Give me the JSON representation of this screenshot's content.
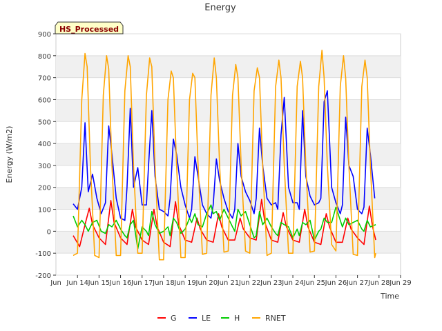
{
  "chart_data": {
    "type": "line",
    "title": "Energy",
    "xlabel": "Time",
    "ylabel": "Energy (W/m2)",
    "ylim": [
      -200,
      900
    ],
    "xlim": [
      13,
      29
    ],
    "y_ticks": [
      "-200",
      "-100",
      "0",
      "100",
      "200",
      "300",
      "400",
      "500",
      "600",
      "700",
      "800",
      "900"
    ],
    "x_ticks": [
      "Jun 14",
      "Jun 15",
      "Jun 16",
      "Jun 17",
      "Jun 18",
      "Jun 19",
      "Jun 20",
      "Jun 21",
      "Jun 22",
      "Jun 23",
      "Jun 24",
      "Jun 25",
      "Jun 26",
      "Jun 27",
      "Jun 28",
      "Jun 29"
    ],
    "x_tick_positions": [
      14,
      15,
      16,
      17,
      18,
      19,
      20,
      21,
      22,
      23,
      24,
      25,
      26,
      27,
      28,
      29
    ],
    "x_first_label": "Jun",
    "annotation": "HS_Processed",
    "legend_position": "bottom-center",
    "grid": "horizontal bands",
    "series": [
      {
        "name": "G",
        "color": "#ff0000",
        "x": [
          13.8,
          14.1,
          14.4,
          14.55,
          14.7,
          15.0,
          15.3,
          15.55,
          15.7,
          16.0,
          16.3,
          16.55,
          16.7,
          17.0,
          17.3,
          17.55,
          17.7,
          18.0,
          18.3,
          18.55,
          18.7,
          19.0,
          19.3,
          19.55,
          19.7,
          20.0,
          20.3,
          20.55,
          20.7,
          21.0,
          21.3,
          21.55,
          21.7,
          22.0,
          22.3,
          22.55,
          22.7,
          23.0,
          23.3,
          23.55,
          23.7,
          24.0,
          24.3,
          24.55,
          24.7,
          25.0,
          25.3,
          25.55,
          25.7,
          26.0,
          26.3,
          26.55,
          26.7,
          27.0,
          27.3,
          27.55,
          27.7,
          27.85
        ],
        "values": [
          -20,
          -70,
          50,
          105,
          30,
          -30,
          -60,
          140,
          40,
          -30,
          -60,
          100,
          20,
          -40,
          -60,
          100,
          20,
          -50,
          -70,
          135,
          30,
          -40,
          -50,
          60,
          10,
          -40,
          -50,
          80,
          20,
          -40,
          -40,
          60,
          10,
          -30,
          -40,
          145,
          40,
          -40,
          -50,
          85,
          20,
          -40,
          -50,
          100,
          20,
          -50,
          -60,
          80,
          20,
          -50,
          -50,
          60,
          10,
          -30,
          -60,
          115,
          20,
          -40
        ]
      },
      {
        "name": "LE",
        "color": "#0000ff",
        "x": [
          13.8,
          14.0,
          14.2,
          14.35,
          14.5,
          14.7,
          14.9,
          15.1,
          15.3,
          15.45,
          15.6,
          15.8,
          16.0,
          16.2,
          16.3,
          16.45,
          16.6,
          16.8,
          17.0,
          17.2,
          17.3,
          17.45,
          17.6,
          17.8,
          18.0,
          18.2,
          18.3,
          18.45,
          18.6,
          18.8,
          19.0,
          19.2,
          19.3,
          19.45,
          19.6,
          19.8,
          20.0,
          20.2,
          20.3,
          20.45,
          20.6,
          20.8,
          21.0,
          21.2,
          21.3,
          21.45,
          21.6,
          21.8,
          22.0,
          22.2,
          22.3,
          22.45,
          22.6,
          22.8,
          23.0,
          23.2,
          23.3,
          23.45,
          23.6,
          23.8,
          24.0,
          24.2,
          24.3,
          24.45,
          24.6,
          24.8,
          25.0,
          25.2,
          25.3,
          25.45,
          25.6,
          25.8,
          26.0,
          26.2,
          26.3,
          26.45,
          26.6,
          26.8,
          27.0,
          27.2,
          27.3,
          27.45,
          27.6,
          27.8
        ],
        "values": [
          125,
          100,
          200,
          495,
          180,
          260,
          150,
          80,
          130,
          480,
          350,
          150,
          60,
          50,
          200,
          560,
          200,
          290,
          120,
          120,
          300,
          550,
          250,
          100,
          90,
          70,
          150,
          420,
          350,
          200,
          120,
          60,
          100,
          340,
          250,
          120,
          80,
          60,
          120,
          330,
          230,
          150,
          90,
          60,
          100,
          400,
          250,
          180,
          140,
          80,
          150,
          470,
          300,
          150,
          120,
          130,
          100,
          440,
          610,
          200,
          130,
          130,
          100,
          550,
          250,
          160,
          120,
          130,
          150,
          590,
          640,
          200,
          130,
          80,
          120,
          520,
          300,
          250,
          100,
          80,
          110,
          470,
          350,
          150
        ]
      },
      {
        "name": "H",
        "color": "#00cc00",
        "x": [
          13.8,
          14.0,
          14.2,
          14.35,
          14.5,
          14.7,
          14.9,
          15.1,
          15.3,
          15.45,
          15.6,
          15.8,
          16.0,
          16.2,
          16.3,
          16.45,
          16.6,
          16.8,
          17.0,
          17.2,
          17.3,
          17.45,
          17.6,
          17.8,
          18.0,
          18.2,
          18.3,
          18.45,
          18.6,
          18.8,
          19.0,
          19.2,
          19.3,
          19.45,
          19.6,
          19.8,
          20.0,
          20.2,
          20.3,
          20.45,
          20.6,
          20.8,
          21.0,
          21.2,
          21.3,
          21.45,
          21.6,
          21.8,
          22.0,
          22.2,
          22.3,
          22.45,
          22.6,
          22.8,
          23.0,
          23.2,
          23.3,
          23.45,
          23.6,
          23.8,
          24.0,
          24.2,
          24.3,
          24.45,
          24.6,
          24.8,
          25.0,
          25.2,
          25.3,
          25.45,
          25.6,
          25.8,
          26.0,
          26.2,
          26.3,
          26.45,
          26.6,
          26.8,
          27.0,
          27.2,
          27.3,
          27.45,
          27.6,
          27.85
        ],
        "values": [
          70,
          20,
          50,
          30,
          0,
          40,
          50,
          0,
          -10,
          30,
          20,
          50,
          10,
          -20,
          -30,
          30,
          50,
          -80,
          20,
          0,
          -20,
          90,
          30,
          -10,
          0,
          20,
          -20,
          60,
          40,
          -10,
          10,
          60,
          40,
          80,
          30,
          20,
          80,
          120,
          80,
          90,
          50,
          100,
          60,
          20,
          0,
          100,
          70,
          90,
          30,
          -30,
          -20,
          90,
          30,
          60,
          20,
          -10,
          -20,
          40,
          30,
          20,
          -30,
          10,
          -20,
          40,
          30,
          50,
          -40,
          0,
          10,
          60,
          40,
          40,
          110,
          50,
          20,
          60,
          30,
          40,
          50,
          10,
          0,
          50,
          20,
          30
        ]
      },
      {
        "name": "RNET",
        "color": "#ffa500",
        "x": [
          13.8,
          14.0,
          14.2,
          14.35,
          14.45,
          14.6,
          14.8,
          15.0,
          15.2,
          15.35,
          15.45,
          15.6,
          15.8,
          16.0,
          16.2,
          16.35,
          16.45,
          16.6,
          16.8,
          17.0,
          17.2,
          17.35,
          17.45,
          17.6,
          17.8,
          18.0,
          18.2,
          18.35,
          18.45,
          18.6,
          18.8,
          19.0,
          19.2,
          19.35,
          19.45,
          19.6,
          19.8,
          20.0,
          20.2,
          20.35,
          20.45,
          20.6,
          20.8,
          21.0,
          21.2,
          21.35,
          21.45,
          21.6,
          21.8,
          22.0,
          22.2,
          22.35,
          22.45,
          22.6,
          22.8,
          23.0,
          23.2,
          23.35,
          23.45,
          23.6,
          23.8,
          24.0,
          24.2,
          24.35,
          24.45,
          24.6,
          24.8,
          25.0,
          25.2,
          25.35,
          25.45,
          25.6,
          25.8,
          26.0,
          26.2,
          26.35,
          26.45,
          26.6,
          26.8,
          27.0,
          27.2,
          27.35,
          27.45,
          27.6,
          27.8,
          27.85
        ],
        "values": [
          -110,
          -100,
          600,
          810,
          750,
          300,
          -110,
          -120,
          620,
          800,
          740,
          300,
          -110,
          -110,
          640,
          800,
          750,
          300,
          -100,
          -100,
          620,
          790,
          750,
          300,
          -130,
          -130,
          600,
          730,
          700,
          300,
          -120,
          -120,
          600,
          720,
          700,
          300,
          -105,
          -100,
          620,
          790,
          700,
          300,
          -95,
          -90,
          620,
          760,
          700,
          300,
          -90,
          -100,
          640,
          745,
          700,
          300,
          -110,
          -100,
          660,
          780,
          700,
          300,
          -100,
          -100,
          660,
          775,
          700,
          300,
          -95,
          -90,
          660,
          825,
          700,
          300,
          -60,
          -90,
          660,
          800,
          700,
          300,
          -105,
          -110,
          660,
          780,
          700,
          300,
          -120,
          -100
        ]
      }
    ]
  }
}
